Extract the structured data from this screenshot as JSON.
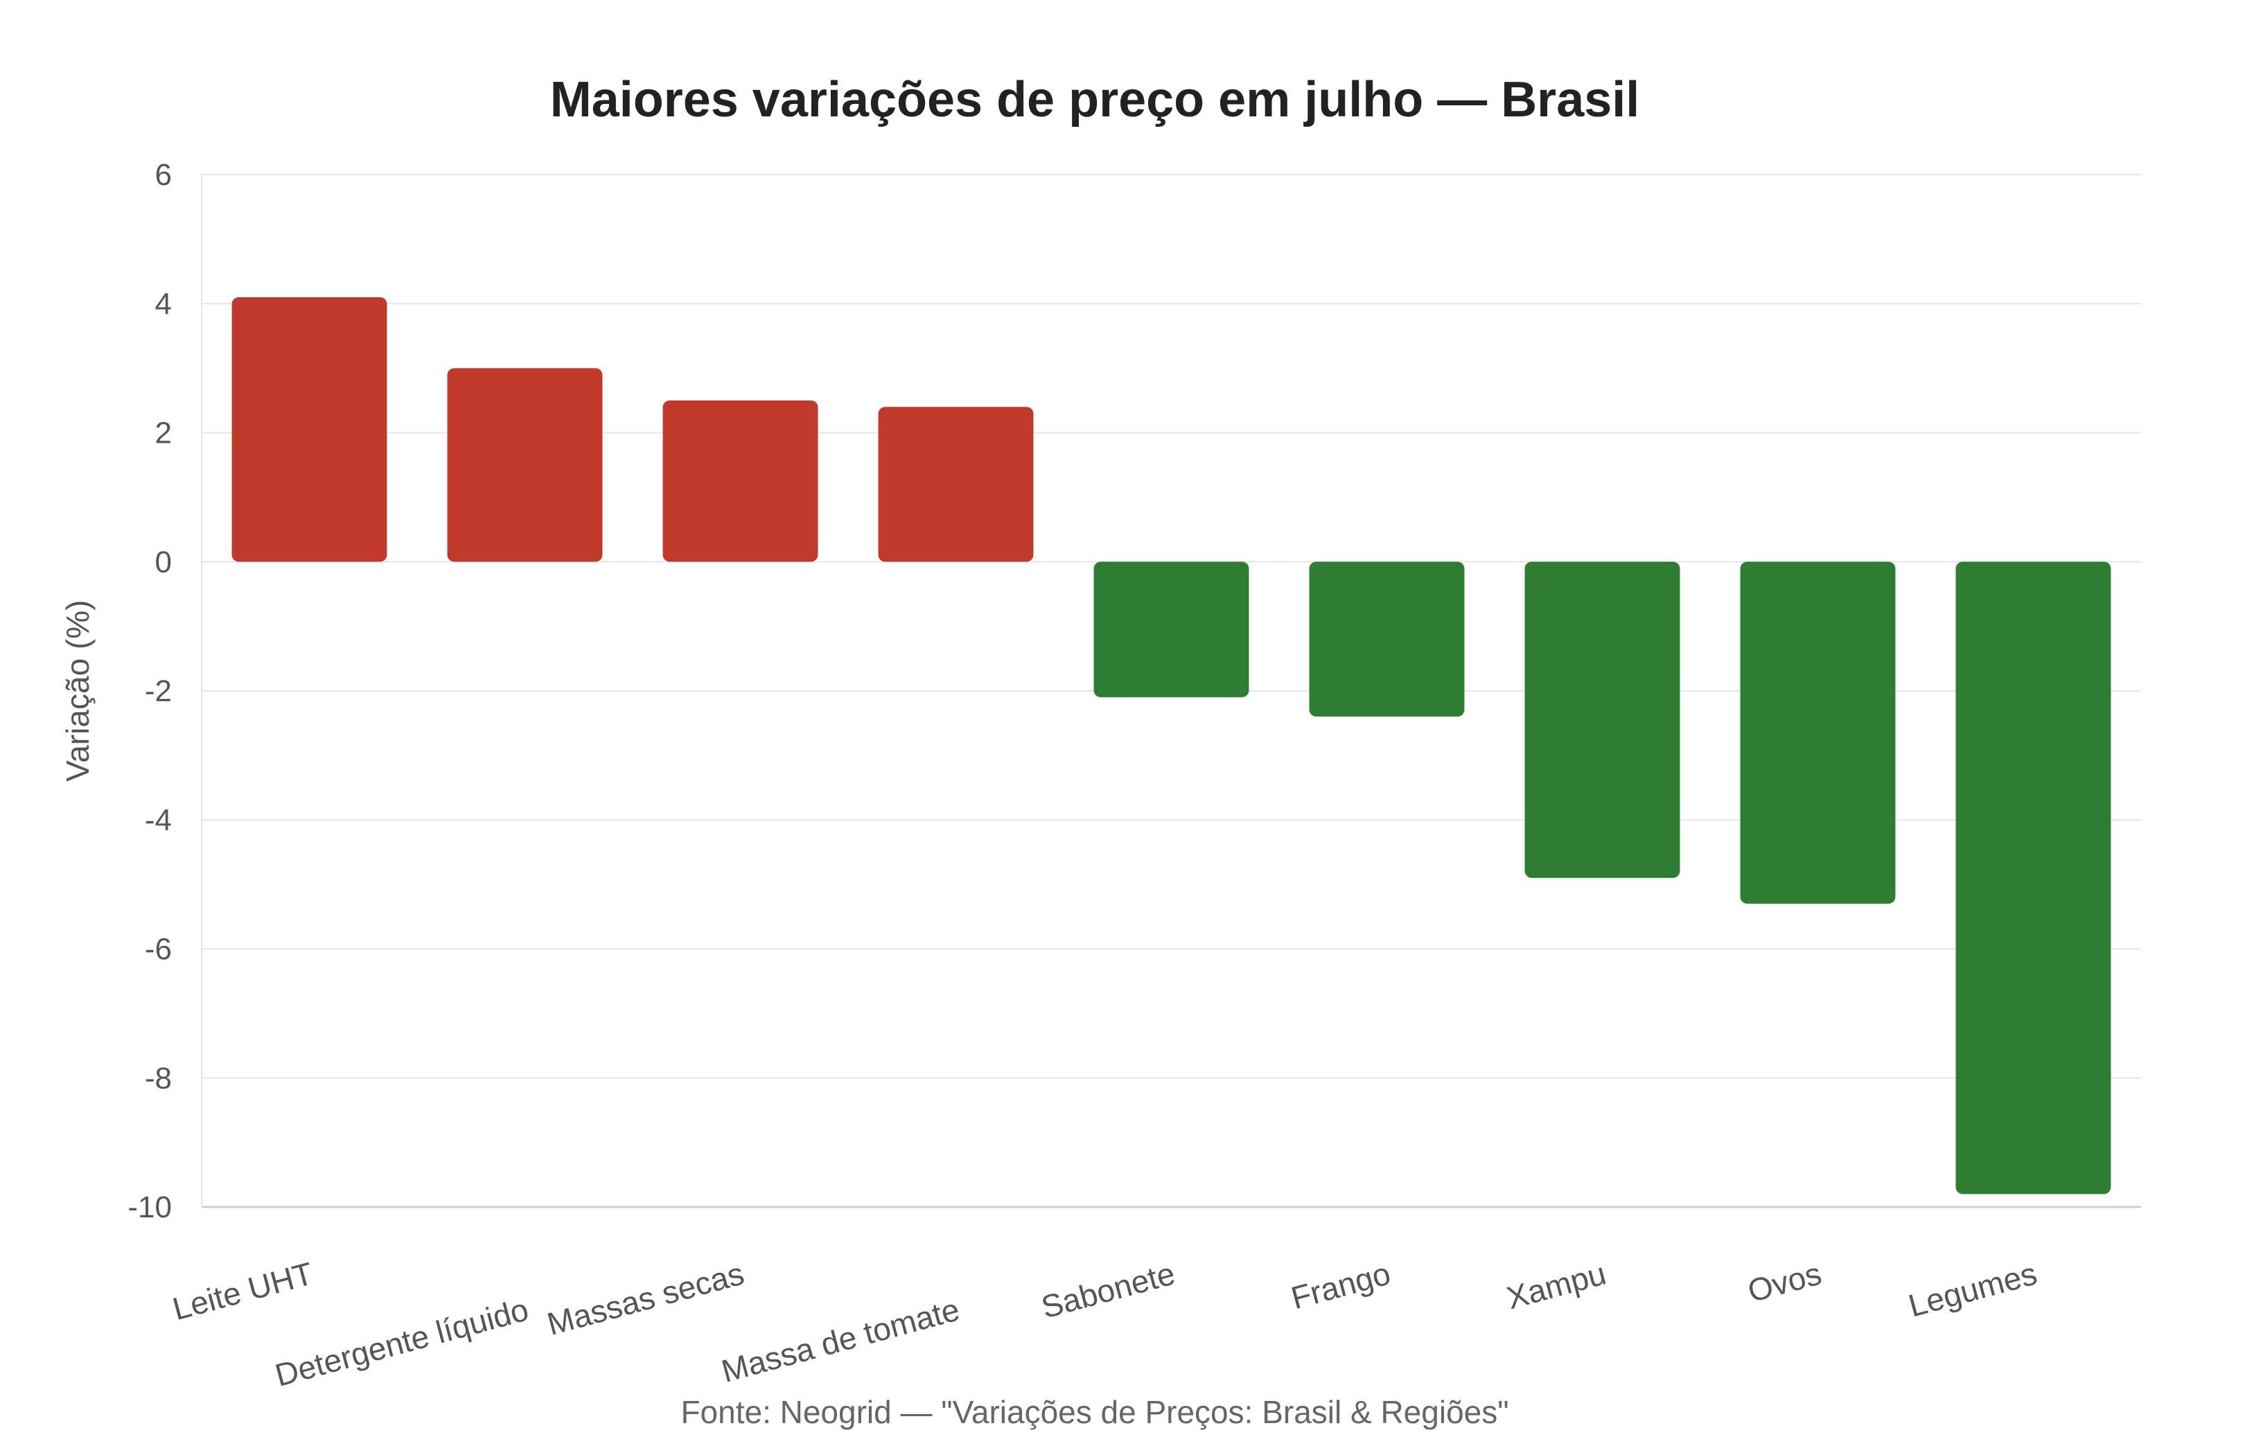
{
  "chart_data": {
    "type": "bar",
    "title": "Maiores variações de preço em julho — Brasil",
    "ylabel": "Variação (%)",
    "xlabel": "",
    "ylim": [
      -10,
      6
    ],
    "yticks": [
      6,
      4,
      2,
      0,
      -2,
      -4,
      -6,
      -8,
      -10
    ],
    "grid": true,
    "categories": [
      "Leite UHT",
      "Detergente líquido",
      "Massas secas",
      "Massa de tomate",
      "Sabonete",
      "Frango",
      "Xampu",
      "Ovos",
      "Legumes"
    ],
    "values": [
      4.1,
      3.0,
      2.5,
      2.4,
      -2.1,
      -2.4,
      -4.9,
      -5.3,
      -9.8
    ],
    "colors": {
      "positive": "#c0392b",
      "negative": "#2e7d32"
    },
    "source": "Fonte: Neogrid — \"Variações de Preços: Brasil & Regiões\""
  }
}
